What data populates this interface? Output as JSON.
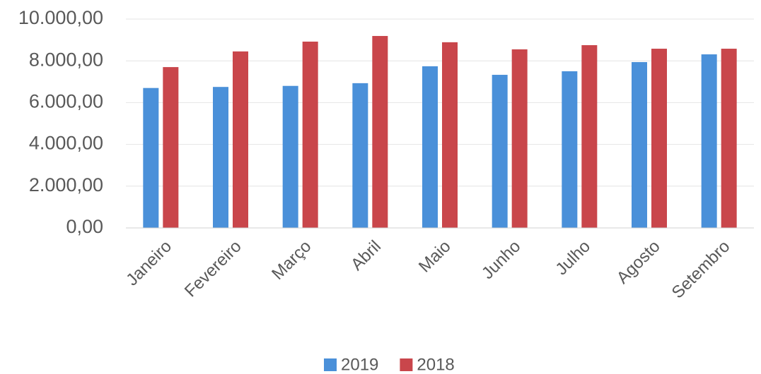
{
  "chart_data": {
    "type": "bar",
    "categories": [
      "Janeiro",
      "Fevereiro",
      "Março",
      "Abril",
      "Maio",
      "Junho",
      "Julho",
      "Agosto",
      "Setembro"
    ],
    "series": [
      {
        "name": "2019",
        "color": "#4a90d9",
        "values": [
          6700,
          6750,
          6800,
          6930,
          7740,
          7330,
          7500,
          7940,
          8310
        ]
      },
      {
        "name": "2018",
        "color": "#c9464b",
        "values": [
          7700,
          8450,
          8920,
          9190,
          8890,
          8550,
          8750,
          8580,
          8580
        ]
      }
    ],
    "ylim": [
      0,
      10000
    ],
    "yticks": [
      {
        "value": 0,
        "label": "0,00"
      },
      {
        "value": 2000,
        "label": "2.000,00"
      },
      {
        "value": 4000,
        "label": "4.000,00"
      },
      {
        "value": 6000,
        "label": "6.000,00"
      },
      {
        "value": 8000,
        "label": "8.000,00"
      },
      {
        "value": 10000,
        "label": "10.000,00"
      }
    ],
    "grid": true,
    "legend": "bottom"
  }
}
